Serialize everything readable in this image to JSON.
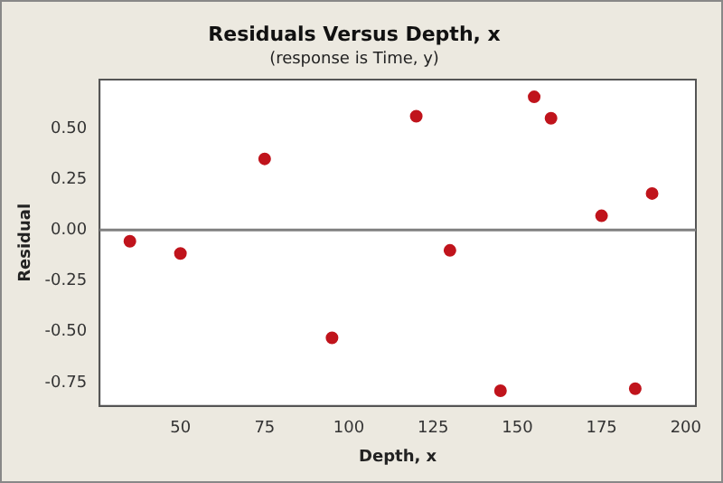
{
  "chart_data": {
    "type": "scatter",
    "title": "Residuals Versus Depth, x",
    "subtitle": "(response is Time, y)",
    "xlabel": "Depth, x",
    "ylabel": "Residual",
    "x": [
      35,
      50,
      75,
      95,
      120,
      130,
      145,
      155,
      160,
      175,
      185,
      190
    ],
    "values": [
      -0.055,
      -0.115,
      0.35,
      -0.53,
      0.56,
      -0.1,
      -0.79,
      0.655,
      0.55,
      0.07,
      -0.78,
      0.18
    ],
    "color": "#c0141c",
    "marker": "circle",
    "xlim": [
      26,
      203
    ],
    "xticks": [
      50,
      75,
      100,
      125,
      150,
      175,
      200
    ],
    "ylim": [
      -0.865,
      0.74
    ],
    "yticks": [
      {
        "value": -0.75,
        "label": "-0.75"
      },
      {
        "value": -0.5,
        "label": "-0.50"
      },
      {
        "value": -0.25,
        "label": "-0.25"
      },
      {
        "value": 0,
        "label": "0.00"
      },
      {
        "value": 0.25,
        "label": "0.25"
      },
      {
        "value": 0.5,
        "label": "0.50"
      }
    ],
    "ref_lines": [
      {
        "axis": "y",
        "value": 0,
        "color": "#808080"
      }
    ],
    "grid": false,
    "legend": false
  }
}
